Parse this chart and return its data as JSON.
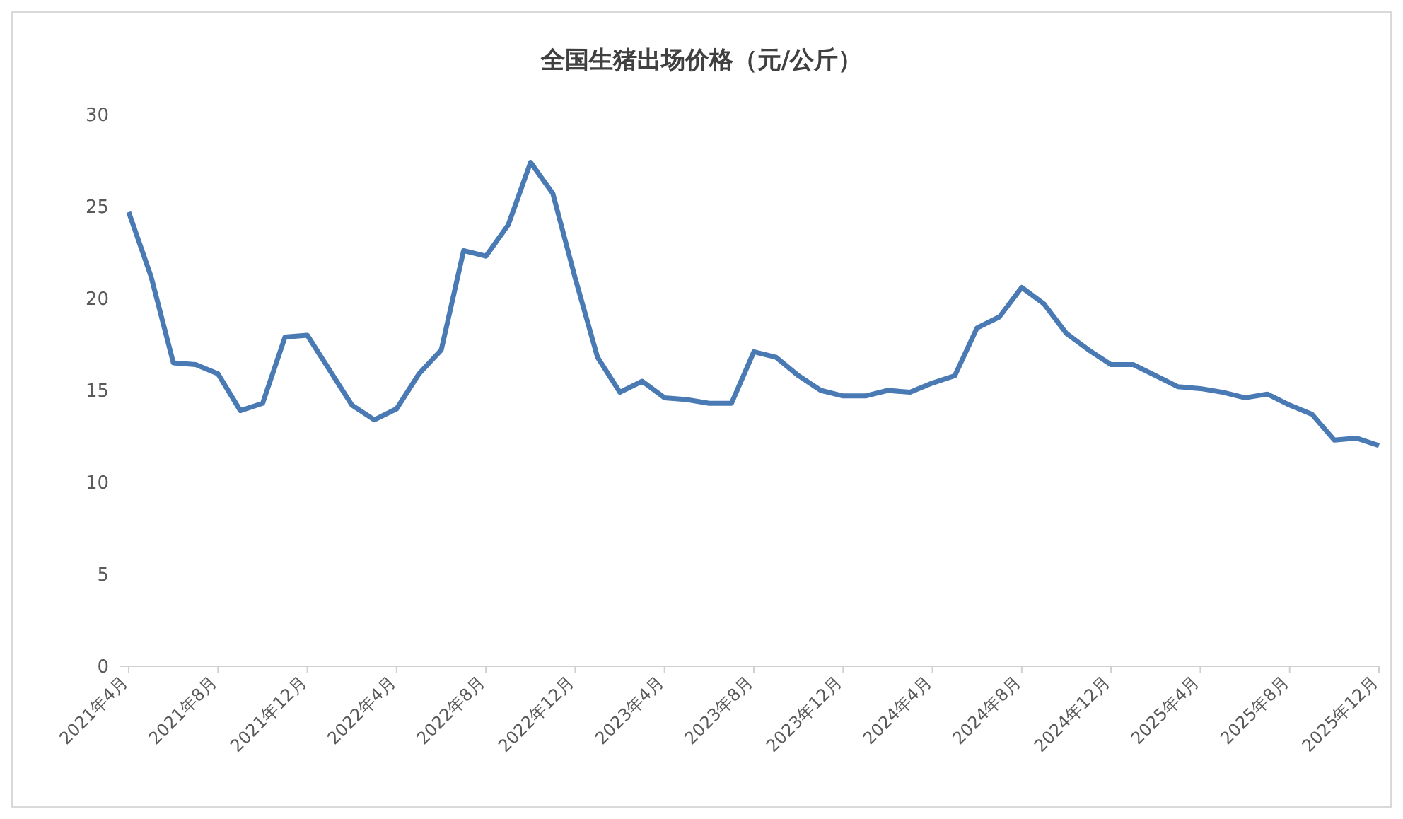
{
  "chart_data": {
    "type": "line",
    "title": "全国生猪出场价格（元/公斤）",
    "categories": [
      "2021年4月",
      null,
      null,
      null,
      "2021年8月",
      null,
      null,
      null,
      "2021年12月",
      null,
      null,
      null,
      "2022年4月",
      null,
      null,
      null,
      "2022年8月",
      null,
      null,
      null,
      "2022年12月",
      null,
      null,
      null,
      "2023年4月",
      null,
      null,
      null,
      "2023年8月",
      null,
      null,
      null,
      "2023年12月",
      null,
      null,
      null,
      "2024年4月",
      null,
      null,
      null,
      "2024年8月",
      null,
      null,
      null,
      "2024年12月",
      null,
      null,
      null,
      "2025年4月",
      null,
      null,
      null,
      "2025年8月",
      null,
      null,
      null,
      "2025年12月"
    ],
    "series": [
      {
        "color": "#4a7ab4",
        "values": [
          24.7,
          21.2,
          16.5,
          16.4,
          15.9,
          13.9,
          14.3,
          17.9,
          18.0,
          16.1,
          14.2,
          13.4,
          14.0,
          15.9,
          17.2,
          22.6,
          22.3,
          24.0,
          27.4,
          25.7,
          21.1,
          16.8,
          14.9,
          15.5,
          14.6,
          14.5,
          14.3,
          14.3,
          17.1,
          16.8,
          15.8,
          15.0,
          14.7,
          14.7,
          15.0,
          14.9,
          15.4,
          15.8,
          18.4,
          19.0,
          20.6,
          19.7,
          18.1,
          17.2,
          16.4,
          16.4,
          15.8,
          15.2,
          15.1,
          14.9,
          14.6,
          14.8,
          14.2,
          13.7,
          12.3,
          12.4,
          12.0
        ]
      }
    ],
    "ylim": [
      0,
      30
    ],
    "yticks": [
      0,
      5,
      10,
      15,
      20,
      25,
      30
    ],
    "grid": false,
    "legend": false,
    "marker": "none",
    "line_style": "solid"
  }
}
